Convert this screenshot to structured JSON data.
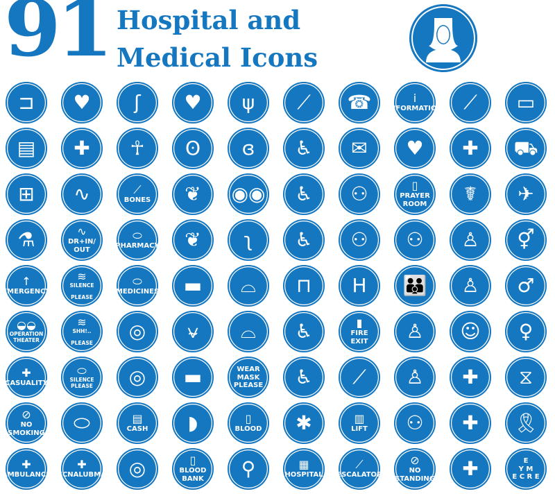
{
  "header": {
    "count": "91",
    "title_line1": "Hospital and",
    "title_line2": "Medical Icons",
    "hero_icon": "nurse-icon"
  },
  "colors": {
    "brand_blue": "#1577c0",
    "icon_white": "#ffffff"
  },
  "icons": [
    {
      "icon": "bed"
    },
    {
      "icon": "heart-care"
    },
    {
      "icon": "stomach"
    },
    {
      "icon": "heart-organ"
    },
    {
      "icon": "lungs"
    },
    {
      "icon": "injection"
    },
    {
      "icon": "phone-contact"
    },
    {
      "icon": "information",
      "label": "INFORMATION"
    },
    {
      "icon": "syringe"
    },
    {
      "icon": "computer"
    },
    {
      "icon": "clipboard"
    },
    {
      "icon": "hands-cross"
    },
    {
      "icon": "skeleton"
    },
    {
      "icon": "kidneys"
    },
    {
      "icon": "ear"
    },
    {
      "icon": "wheelchair"
    },
    {
      "icon": "phone-envelope"
    },
    {
      "icon": "heart-ecg"
    },
    {
      "icon": "cross"
    },
    {
      "icon": "ambulance-van"
    },
    {
      "icon": "first-aid-kit"
    },
    {
      "icon": "stethoscope"
    },
    {
      "icon": "bones",
      "label": "BONES"
    },
    {
      "icon": "brain"
    },
    {
      "icon": "eyes"
    },
    {
      "icon": "wheelchair"
    },
    {
      "icon": "doctor-patient"
    },
    {
      "icon": "prayer-book",
      "label": "PRAYER\nROOM"
    },
    {
      "icon": "caduceus"
    },
    {
      "icon": "helicopter"
    },
    {
      "icon": "laboratory"
    },
    {
      "icon": "stethoscope",
      "label": "DR+IN/ OUT"
    },
    {
      "icon": "pills",
      "label": "PHARMACY"
    },
    {
      "icon": "brain"
    },
    {
      "icon": "nose"
    },
    {
      "icon": "wheelchair"
    },
    {
      "icon": "surgeons"
    },
    {
      "icon": "doctors"
    },
    {
      "icon": "man-doctor"
    },
    {
      "icon": "male-female"
    },
    {
      "icon": "arrow-up",
      "label": "EMERGENCY"
    },
    {
      "icon": "zipped-lips",
      "label": "SILENCE\n\nPLEASE"
    },
    {
      "icon": "pills",
      "label": "MEDICINES"
    },
    {
      "icon": "teeth"
    },
    {
      "icon": "face-mask"
    },
    {
      "icon": "wheelchair-front"
    },
    {
      "icon": "hospital-h"
    },
    {
      "icon": "family"
    },
    {
      "icon": "nurse"
    },
    {
      "icon": "male"
    },
    {
      "icon": "lamps",
      "label": "OPERATION\nTHEATER"
    },
    {
      "icon": "zipped-lips",
      "label": "SHH!..\n\nPLEASE"
    },
    {
      "icon": "medicine-pattern"
    },
    {
      "icon": "tooth"
    },
    {
      "icon": "face-mask"
    },
    {
      "icon": "person-wheelchair"
    },
    {
      "icon": "fire",
      "label": "FIRE\nEXIT"
    },
    {
      "icon": "man"
    },
    {
      "icon": "woman-head"
    },
    {
      "icon": "female"
    },
    {
      "icon": "cross",
      "label": "CASUALITY"
    },
    {
      "icon": "pills",
      "label": "SILENCE\nPLEASE"
    },
    {
      "icon": "medicine-pattern"
    },
    {
      "icon": "teeth"
    },
    {
      "icon": "mask",
      "label": "WEAR\nMASK\nPLEASE"
    },
    {
      "icon": "person-seated"
    },
    {
      "icon": "escalator"
    },
    {
      "icon": "woman"
    },
    {
      "icon": "doctor-cross"
    },
    {
      "icon": "dna"
    },
    {
      "icon": "no-smoking",
      "label": "NO SMOKING"
    },
    {
      "icon": "pills"
    },
    {
      "icon": "money",
      "label": "CASH"
    },
    {
      "icon": "liver"
    },
    {
      "icon": "blood-bag",
      "label": "BLOOD"
    },
    {
      "icon": "star-of-life"
    },
    {
      "icon": "elevator",
      "label": "LIFT"
    },
    {
      "icon": "couple"
    },
    {
      "icon": "doctor-cross"
    },
    {
      "icon": "ribbon"
    },
    {
      "icon": "cross",
      "label": "AMBULANCE"
    },
    {
      "icon": "cross",
      "label": "ECNALUBMA"
    },
    {
      "icon": "medicine-pattern"
    },
    {
      "icon": "blood-bag",
      "label": "BLOOD\nBANK"
    },
    {
      "icon": "iv-drip"
    },
    {
      "icon": "hospital-building",
      "label": "HOSPITAL"
    },
    {
      "icon": "escalator",
      "label": "ESCALATOR"
    },
    {
      "icon": "no-standing",
      "label": "NO\nSTANDING"
    },
    {
      "icon": "doctor-cross"
    },
    {
      "icon": "eye-chart",
      "label": "E\nY M\nE C R E"
    }
  ]
}
